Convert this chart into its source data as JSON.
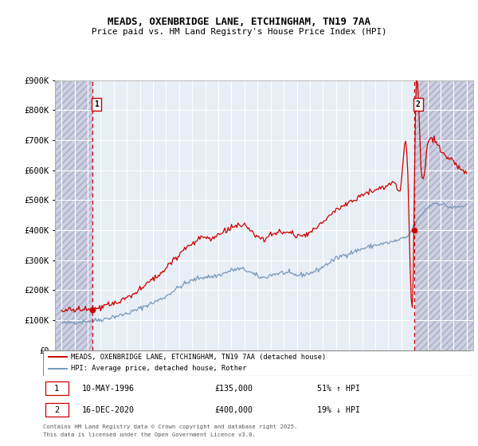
{
  "title": "MEADS, OXENBRIDGE LANE, ETCHINGHAM, TN19 7AA",
  "subtitle": "Price paid vs. HM Land Registry's House Price Index (HPI)",
  "legend_line1": "MEADS, OXENBRIDGE LANE, ETCHINGHAM, TN19 7AA (detached house)",
  "legend_line2": "HPI: Average price, detached house, Rother",
  "footnote1": "Contains HM Land Registry data © Crown copyright and database right 2025.",
  "footnote2": "This data is licensed under the Open Government Licence v3.0.",
  "sale1_date": "10-MAY-1996",
  "sale1_price": 135000,
  "sale1_price_str": "£135,000",
  "sale1_pct": "51% ↑ HPI",
  "sale1_year": 1996.36,
  "sale2_date": "16-DEC-2020",
  "sale2_price": 400000,
  "sale2_price_str": "£400,000",
  "sale2_pct": "19% ↓ HPI",
  "sale2_year": 2020.96,
  "ylim": [
    0,
    900000
  ],
  "xlim_start": 1993.5,
  "xlim_end": 2025.5,
  "red_color": "#cc0000",
  "blue_color": "#7799bb",
  "bg_color": "#e8eef5",
  "hatch_color": "#ccd0de",
  "grid_color": "#ffffff"
}
